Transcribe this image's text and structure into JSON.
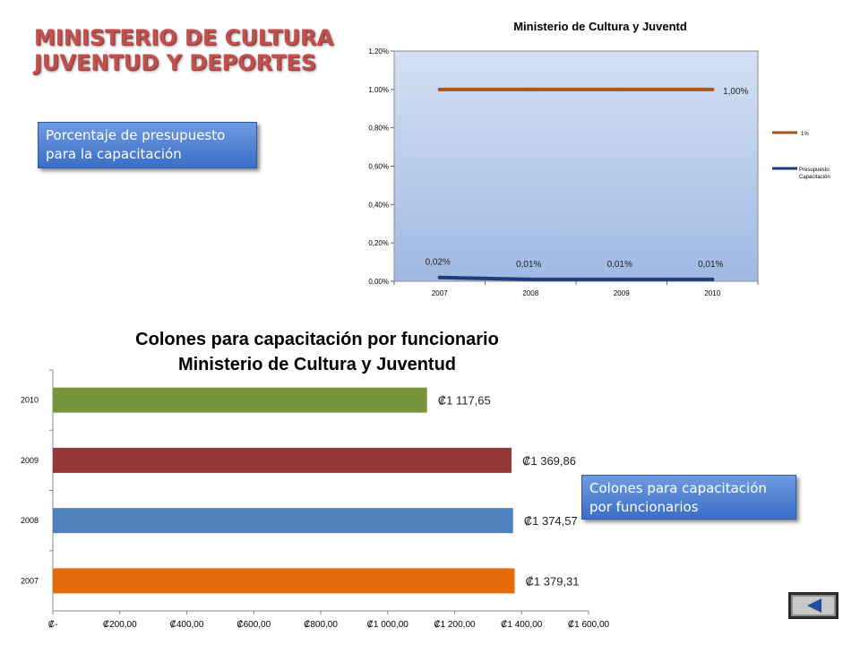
{
  "slide": {
    "title_line1": "MINISTERIO DE CULTURA",
    "title_line2": "JUVENTUD Y DEPORTES",
    "callout_budget": "Porcentaje de presupuesto para la capacitación",
    "callout_colones": "Colones para capacitación por funcionarios",
    "back_button_icon": "left-triangle-icon"
  },
  "chart_data": [
    {
      "type": "line",
      "title": "Ministerio de Cultura y Juventd",
      "categories": [
        "2007",
        "2008",
        "2009",
        "2010"
      ],
      "ylim": [
        0,
        0.012
      ],
      "y_ticks": [
        "0,00%",
        "0,20%",
        "0,40%",
        "0,60%",
        "0,80%",
        "1,00%",
        "1,20%"
      ],
      "legend_position": "right",
      "plot_background": "#b8cbe9",
      "series": [
        {
          "name": "1%",
          "color": "#a9531f",
          "values": [
            0.01,
            0.01,
            0.01,
            0.01
          ],
          "labels": [
            "",
            "",
            "",
            "1,00%"
          ]
        },
        {
          "name": "Presupuesto Capacitación",
          "color": "#1f3c78",
          "values": [
            0.0002,
            0.0001,
            0.0001,
            0.0001
          ],
          "labels": [
            "0,02%",
            "0,01%",
            "0,01%",
            "0,01%"
          ]
        }
      ]
    },
    {
      "type": "bar",
      "orientation": "horizontal",
      "title_line1": "Colones para capacitación por funcionario",
      "title_line2": "Ministerio de Cultura y Juventud",
      "categories": [
        "2010",
        "2009",
        "2008",
        "2007"
      ],
      "values": [
        1117.65,
        1369.86,
        1374.57,
        1379.31
      ],
      "value_labels": [
        "₡1 117,65",
        "₡1 369,86",
        "₡1 374,57",
        "₡1 379,31"
      ],
      "colors": [
        "#77933c",
        "#953735",
        "#4f81bd",
        "#e46c0a"
      ],
      "xlim": [
        0,
        1600
      ],
      "x_ticks": [
        "₡-",
        "₡200,00",
        "₡400,00",
        "₡600,00",
        "₡800,00",
        "₡1 000,00",
        "₡1 200,00",
        "₡1 400,00",
        "₡1 600,00"
      ]
    }
  ]
}
